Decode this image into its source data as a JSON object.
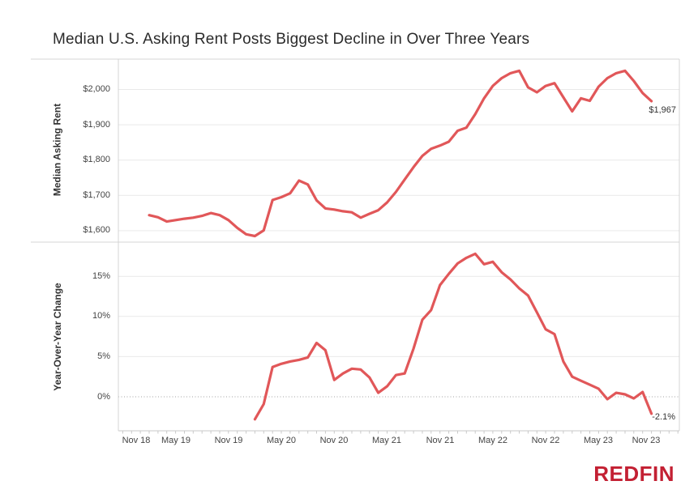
{
  "title": "Median U.S. Asking Rent Posts Biggest Decline in Over Three Years",
  "logo": {
    "text": "REDFIN",
    "color": "#c32033"
  },
  "colors": {
    "line": "#e15759",
    "grid": "#e9e9e9",
    "border": "#d4d4d4",
    "axis_line": "#c9c9c9",
    "tick": "#c9c9c9",
    "zero_line": "#a3a3a3",
    "tick_text": "#444444",
    "annotation_text": "#333333",
    "title_text": "#2b2b2b"
  },
  "x_axis": {
    "labels": [
      "Nov 18",
      "May 19",
      "Nov 19",
      "May 20",
      "Nov 20",
      "May 21",
      "Nov 21",
      "May 22",
      "Nov 22",
      "May 23",
      "Nov 23"
    ],
    "first_label_month_index": -3,
    "label_step_months": 6
  },
  "chart_data": [
    {
      "type": "line",
      "name": "median-asking-rent",
      "ylabel": "Median Asking Rent",
      "y_ticks": [
        {
          "label": "$2,000",
          "value": 2000
        },
        {
          "label": "$1,900",
          "value": 1900
        },
        {
          "label": "$1,800",
          "value": 1800
        },
        {
          "label": "$1,700",
          "value": 1700
        },
        {
          "label": "$1,600",
          "value": 1600
        }
      ],
      "ylim": [
        1570,
        2086
      ],
      "start_month": "Feb 2019",
      "start_month_index": 0,
      "end_label": "$1,967",
      "zero_line_dotted": false,
      "values": [
        1644,
        1638,
        1626,
        1630,
        1634,
        1637,
        1642,
        1650,
        1644,
        1630,
        1608,
        1590,
        1585,
        1601,
        1687,
        1695,
        1706,
        1742,
        1731,
        1686,
        1663,
        1660,
        1655,
        1652,
        1637,
        1648,
        1658,
        1680,
        1710,
        1745,
        1780,
        1812,
        1832,
        1841,
        1852,
        1883,
        1892,
        1930,
        1975,
        2010,
        2032,
        2046,
        2053,
        2006,
        1992,
        2010,
        2018,
        1978,
        1938,
        1975,
        1968,
        2008,
        2032,
        2046,
        2053,
        2024,
        1990,
        1967
      ]
    },
    {
      "type": "line",
      "name": "year-over-year-change",
      "ylabel": "Year-Over-Year Change",
      "y_ticks": [
        {
          "label": "15%",
          "value": 15
        },
        {
          "label": "10%",
          "value": 10
        },
        {
          "label": "5%",
          "value": 5
        },
        {
          "label": "0%",
          "value": 0
        }
      ],
      "ylim": [
        -4.23,
        19.15
      ],
      "start_month": "Feb 2020",
      "start_month_index": 12,
      "end_label": "-2.1%",
      "zero_line_dotted": true,
      "values": [
        -2.8,
        -0.9,
        3.7,
        4.1,
        4.4,
        4.6,
        4.9,
        6.7,
        5.8,
        2.1,
        2.9,
        3.5,
        3.4,
        2.4,
        0.5,
        1.3,
        2.7,
        2.9,
        6.0,
        9.6,
        10.8,
        13.9,
        15.3,
        16.6,
        17.3,
        17.8,
        16.5,
        16.8,
        15.5,
        14.6,
        13.5,
        12.6,
        10.5,
        8.4,
        7.8,
        4.4,
        2.5,
        2.0,
        1.5,
        1.0,
        -0.3,
        0.5,
        0.3,
        -0.2,
        0.6,
        -2.1
      ]
    }
  ]
}
